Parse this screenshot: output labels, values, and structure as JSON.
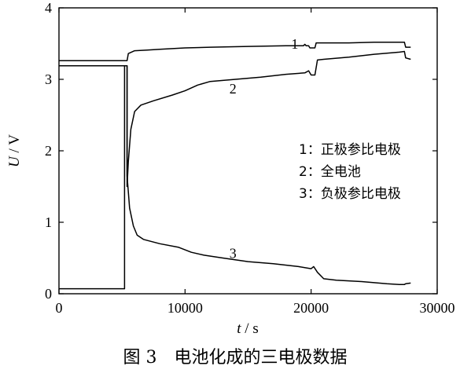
{
  "caption": "图 3　电池化成的三电极数据",
  "chart_data": {
    "type": "line",
    "xlabel_var": "t",
    "xlabel_unit": "s",
    "ylabel_var": "U",
    "ylabel_unit": "V",
    "xlim": [
      0,
      30000
    ],
    "ylim": [
      0,
      4
    ],
    "xticks": [
      0,
      10000,
      20000,
      30000
    ],
    "yticks": [
      0,
      1,
      2,
      3,
      4
    ],
    "grid": false,
    "legend_position": "right",
    "legend": [
      "1：正极参比电极",
      "2：全电池",
      "3：负极参比电极"
    ],
    "series": [
      {
        "label": "1",
        "label_at": [
          18700,
          3.43
        ],
        "points": [
          [
            0,
            3.26
          ],
          [
            5400,
            3.26
          ],
          [
            5500,
            3.36
          ],
          [
            6000,
            3.4
          ],
          [
            7000,
            3.41
          ],
          [
            8000,
            3.42
          ],
          [
            10000,
            3.44
          ],
          [
            12000,
            3.45
          ],
          [
            15000,
            3.46
          ],
          [
            18000,
            3.47
          ],
          [
            19400,
            3.47
          ],
          [
            19500,
            3.49
          ],
          [
            19600,
            3.47
          ],
          [
            19800,
            3.47
          ],
          [
            19900,
            3.44
          ],
          [
            20300,
            3.44
          ],
          [
            20400,
            3.51
          ],
          [
            21000,
            3.51
          ],
          [
            23000,
            3.51
          ],
          [
            25000,
            3.52
          ],
          [
            27000,
            3.52
          ],
          [
            27400,
            3.52
          ],
          [
            27500,
            3.45
          ],
          [
            27900,
            3.45
          ]
        ]
      },
      {
        "label": "2",
        "label_at": [
          13800,
          2.8
        ],
        "points": [
          [
            0,
            3.19
          ],
          [
            5400,
            3.19
          ],
          [
            5400,
            1.5
          ],
          [
            5500,
            1.85
          ],
          [
            5700,
            2.3
          ],
          [
            6000,
            2.55
          ],
          [
            6500,
            2.64
          ],
          [
            7500,
            2.7
          ],
          [
            9000,
            2.78
          ],
          [
            10000,
            2.84
          ],
          [
            11000,
            2.92
          ],
          [
            12000,
            2.97
          ],
          [
            14000,
            3.0
          ],
          [
            16000,
            3.03
          ],
          [
            18000,
            3.07
          ],
          [
            19500,
            3.09
          ],
          [
            19800,
            3.12
          ],
          [
            20000,
            3.06
          ],
          [
            20300,
            3.06
          ],
          [
            20500,
            3.27
          ],
          [
            21000,
            3.28
          ],
          [
            23000,
            3.31
          ],
          [
            25000,
            3.35
          ],
          [
            27000,
            3.38
          ],
          [
            27400,
            3.39
          ],
          [
            27500,
            3.3
          ],
          [
            27900,
            3.28
          ]
        ]
      },
      {
        "label": "3",
        "label_at": [
          13800,
          0.5
        ],
        "points": [
          [
            0,
            0.07
          ],
          [
            5200,
            0.07
          ],
          [
            5200,
            3.19
          ],
          [
            5400,
            3.19
          ],
          [
            5400,
            1.65
          ],
          [
            5600,
            1.2
          ],
          [
            5900,
            0.95
          ],
          [
            6200,
            0.82
          ],
          [
            6700,
            0.76
          ],
          [
            8000,
            0.7
          ],
          [
            9500,
            0.65
          ],
          [
            10500,
            0.58
          ],
          [
            11500,
            0.54
          ],
          [
            13000,
            0.5
          ],
          [
            15000,
            0.45
          ],
          [
            17000,
            0.42
          ],
          [
            19000,
            0.38
          ],
          [
            20000,
            0.35
          ],
          [
            20200,
            0.38
          ],
          [
            20500,
            0.3
          ],
          [
            21000,
            0.21
          ],
          [
            22000,
            0.19
          ],
          [
            24000,
            0.17
          ],
          [
            26000,
            0.14
          ],
          [
            27000,
            0.13
          ],
          [
            27400,
            0.13
          ],
          [
            27500,
            0.14
          ],
          [
            27900,
            0.15
          ]
        ]
      }
    ]
  }
}
